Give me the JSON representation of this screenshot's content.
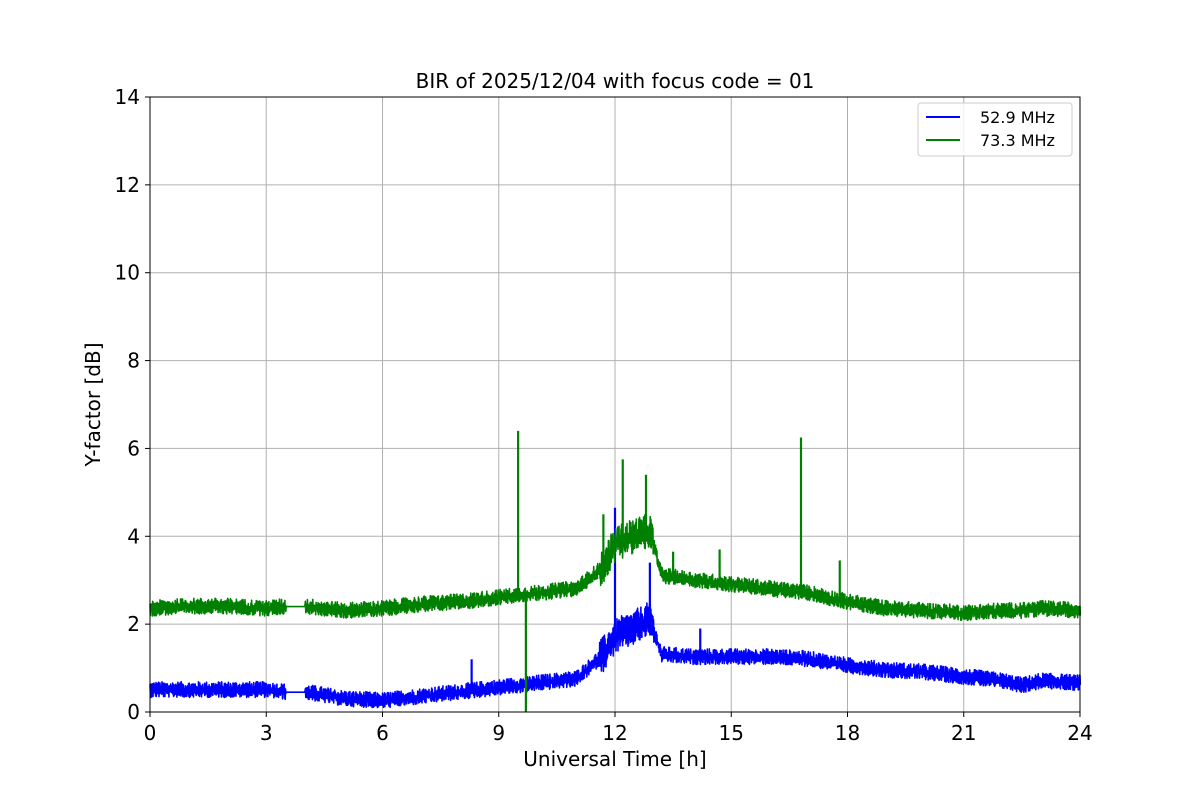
{
  "chart_data": {
    "type": "line",
    "title": "BIR of 2025/12/04 with focus code = 01",
    "xlabel": "Universal Time [h]",
    "ylabel": "Y-factor [dB]",
    "xlim": [
      0,
      24
    ],
    "ylim": [
      0,
      14
    ],
    "xticks": [
      0,
      3,
      6,
      9,
      12,
      15,
      18,
      21,
      24
    ],
    "yticks": [
      0,
      2,
      4,
      6,
      8,
      10,
      12,
      14
    ],
    "xtick_labels": [
      "0",
      "3",
      "6",
      "9",
      "12",
      "15",
      "18",
      "21",
      "24"
    ],
    "ytick_labels": [
      "0",
      "2",
      "4",
      "6",
      "8",
      "10",
      "12",
      "14"
    ],
    "grid": true,
    "legend_placement": "top-right",
    "series": [
      {
        "name": "52.9 MHz",
        "color": "#0000ff",
        "noise": 0.12,
        "x": [
          0,
          1,
          2,
          3,
          3.5,
          4,
          5,
          6,
          7,
          8,
          9,
          10,
          11,
          11.7,
          12,
          12.5,
          12.9,
          13.2,
          14,
          15,
          16,
          17,
          18,
          19,
          20,
          21,
          22,
          22.5,
          23,
          24
        ],
        "y": [
          0.5,
          0.5,
          0.5,
          0.5,
          0.45,
          0.45,
          0.3,
          0.25,
          0.35,
          0.45,
          0.55,
          0.65,
          0.75,
          1.3,
          1.7,
          1.9,
          2.1,
          1.3,
          1.25,
          1.25,
          1.25,
          1.2,
          1.05,
          0.95,
          0.9,
          0.8,
          0.7,
          0.6,
          0.7,
          0.65
        ],
        "spikes": [
          [
            8.3,
            1.2
          ],
          [
            12.0,
            4.65
          ],
          [
            12.9,
            3.4
          ],
          [
            14.2,
            1.9
          ]
        ],
        "gaps": [
          [
            3.5,
            4.0
          ]
        ]
      },
      {
        "name": "73.3 MHz",
        "color": "#008000",
        "noise": 0.12,
        "x": [
          0,
          1,
          2,
          3,
          3.5,
          4,
          5,
          6,
          7,
          8,
          9,
          10,
          11,
          11.7,
          12,
          12.5,
          12.9,
          13.2,
          14,
          15,
          16,
          17,
          18,
          19,
          20,
          21,
          22,
          22.5,
          23,
          24
        ],
        "y": [
          2.35,
          2.4,
          2.4,
          2.35,
          2.4,
          2.4,
          2.3,
          2.35,
          2.45,
          2.5,
          2.6,
          2.7,
          2.8,
          3.3,
          3.8,
          4.0,
          4.1,
          3.1,
          3.0,
          2.9,
          2.8,
          2.7,
          2.5,
          2.35,
          2.3,
          2.25,
          2.3,
          2.3,
          2.35,
          2.3
        ],
        "spikes": [
          [
            9.5,
            6.4
          ],
          [
            16.8,
            6.25
          ],
          [
            12.2,
            5.75
          ],
          [
            12.8,
            5.4
          ],
          [
            11.7,
            4.5
          ],
          [
            14.7,
            3.7
          ],
          [
            17.8,
            3.45
          ],
          [
            13.5,
            3.65
          ]
        ],
        "dips": [
          [
            9.7,
            0.0
          ]
        ],
        "gaps": [
          [
            3.5,
            4.0
          ]
        ]
      }
    ]
  }
}
